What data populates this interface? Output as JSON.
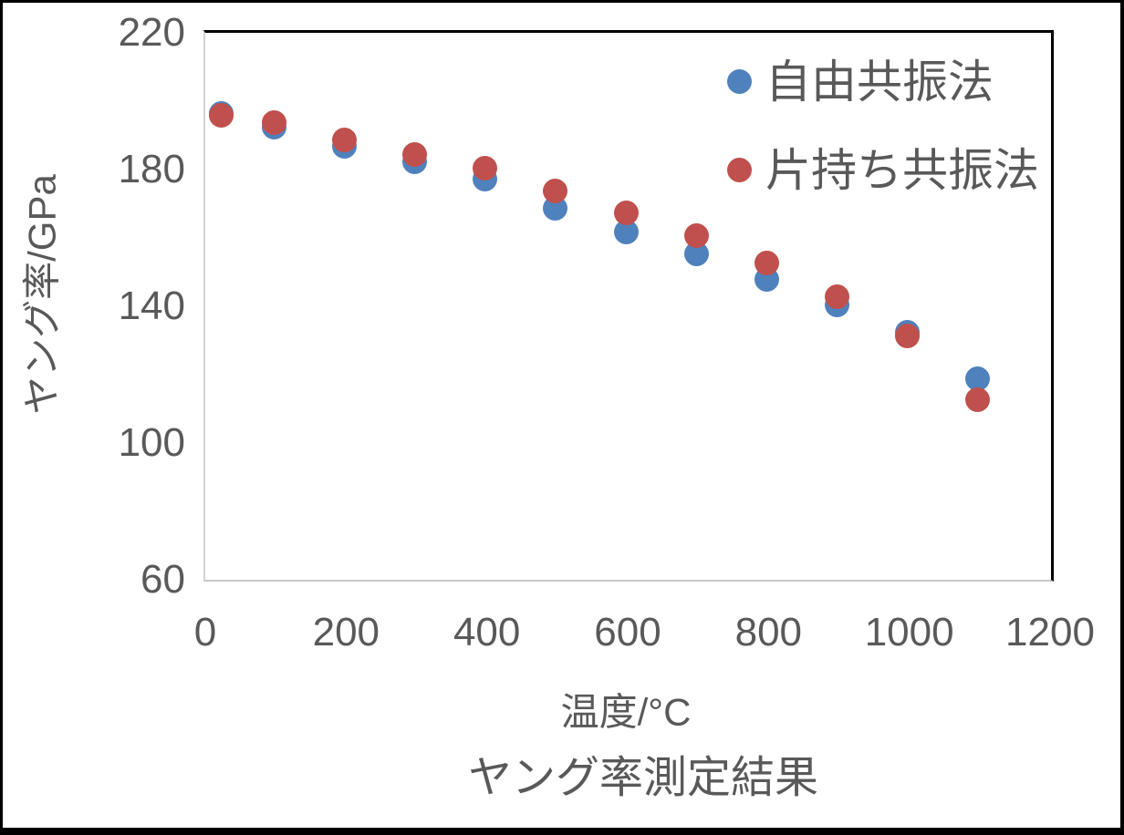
{
  "chart_data": {
    "type": "scatter",
    "title": "ヤング率測定結果",
    "xlabel": "温度/°C",
    "ylabel": "ヤング率/GPa",
    "xlim": [
      0,
      1200
    ],
    "ylim": [
      60,
      220
    ],
    "x_ticks": [
      0,
      200,
      400,
      600,
      800,
      1000,
      1200
    ],
    "y_ticks": [
      220,
      180,
      140,
      100,
      60
    ],
    "grid": false,
    "legend_position": "top-right-inside",
    "x": [
      25,
      100,
      200,
      300,
      400,
      500,
      600,
      700,
      800,
      900,
      1000,
      1100
    ],
    "series": [
      {
        "name": "自由共振法",
        "color": "#4F81BD",
        "values": [
          195.5,
          191.5,
          186,
          181.5,
          176.5,
          168,
          161,
          154.5,
          147,
          139.5,
          131.5,
          118
        ]
      },
      {
        "name": "片持ち共振法",
        "color": "#C0504D",
        "values": [
          195,
          193,
          188,
          183.5,
          179.5,
          173,
          166.5,
          160,
          152,
          142,
          130.5,
          112
        ]
      }
    ]
  },
  "colors": {
    "series_blue": "#4F81BD",
    "series_red": "#C0504D",
    "text_gray": "#595959",
    "axis_line_gray": "#C8C8C8",
    "plot_border_black": "#000000"
  }
}
